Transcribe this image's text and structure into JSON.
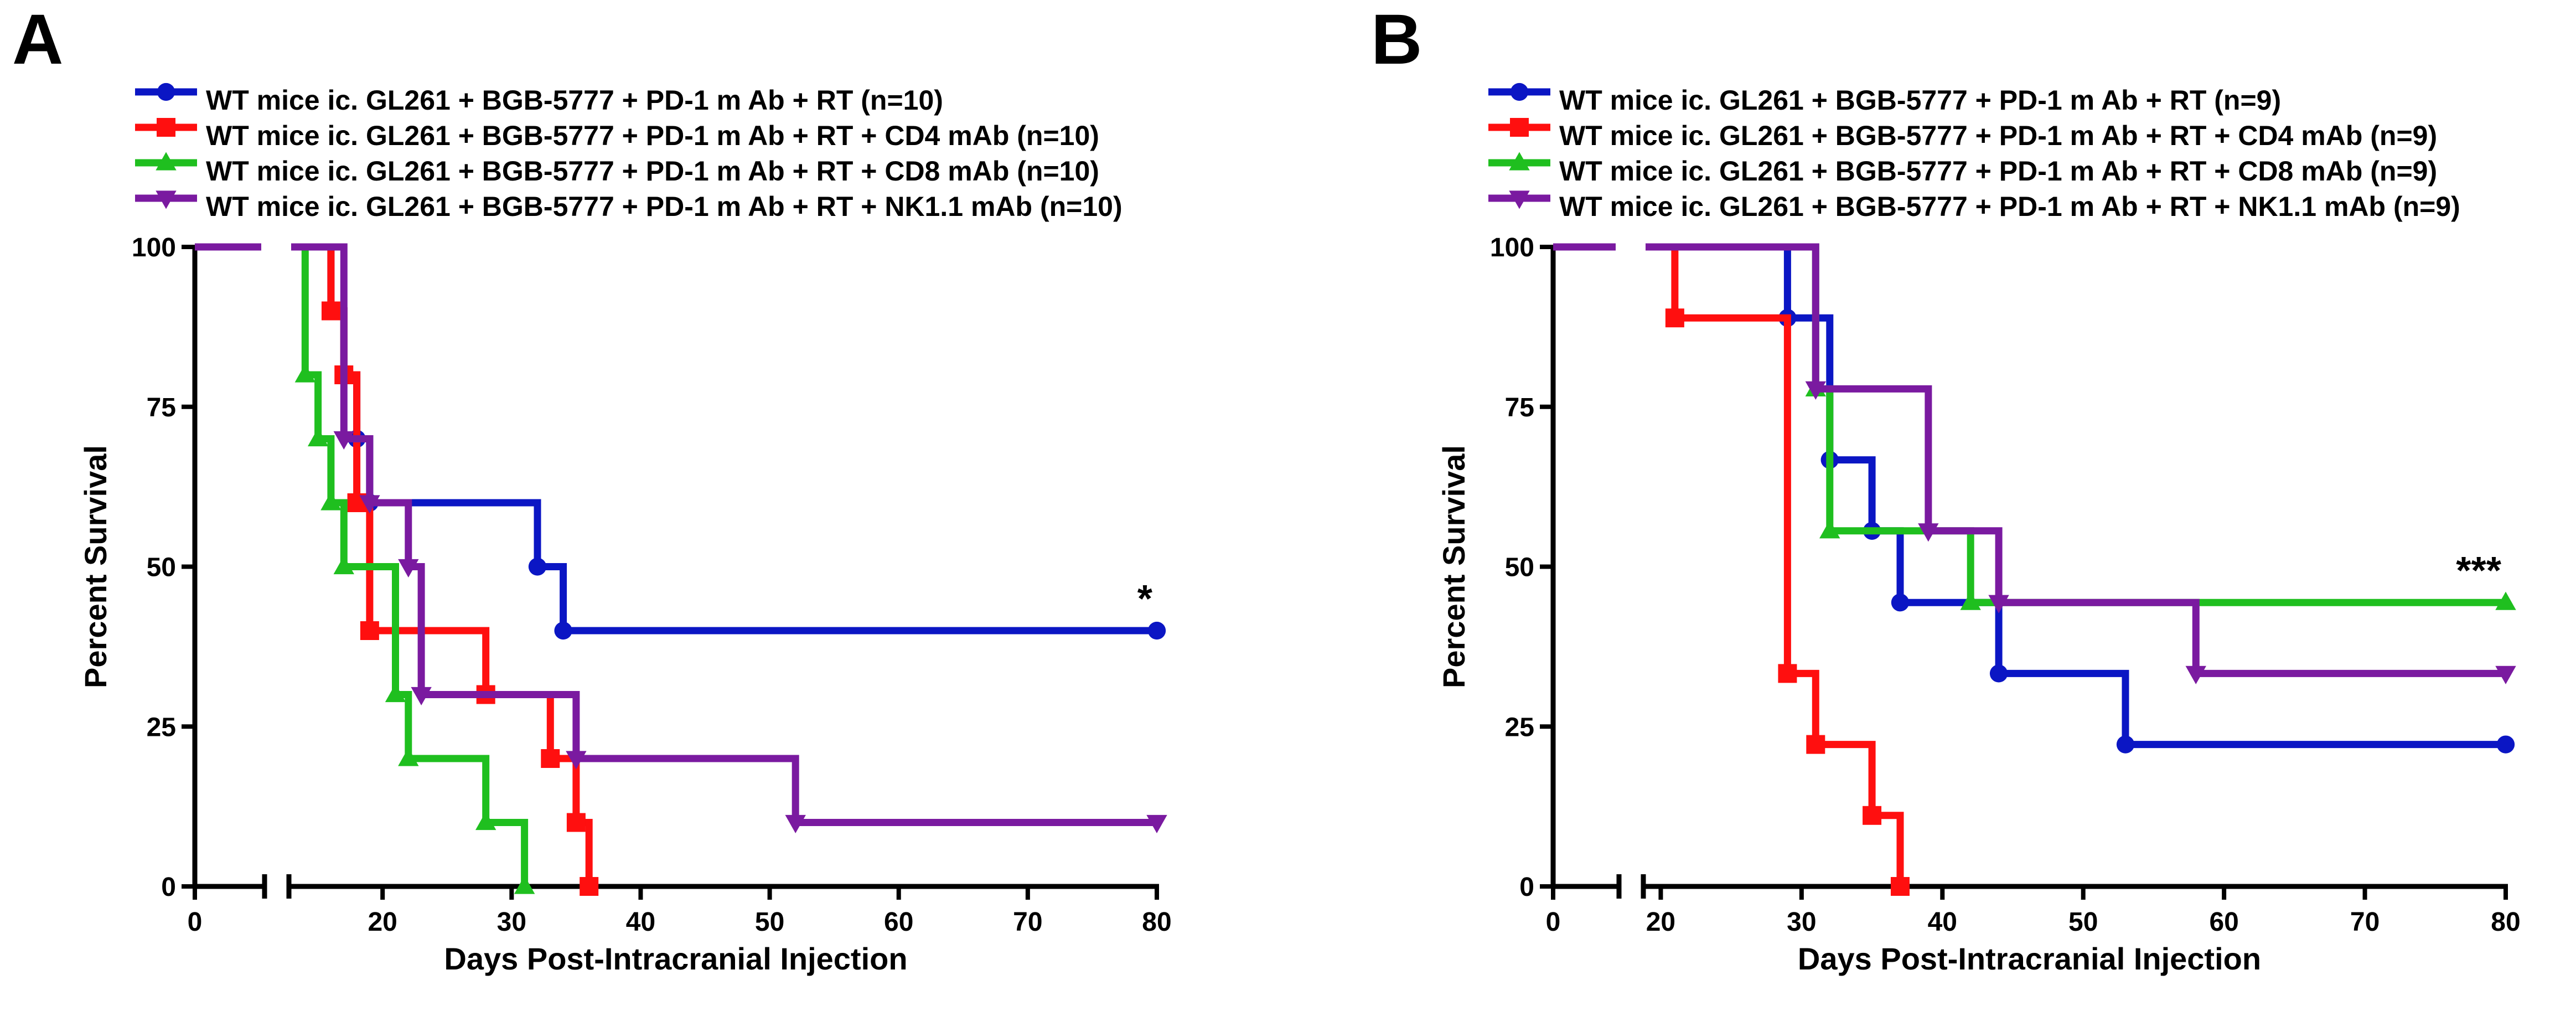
{
  "chart_data": [
    {
      "type": "line",
      "panel_label": "A",
      "xlabel": "Days Post-Intracranial Injection",
      "ylabel": "Percent Survival",
      "xlim": [
        0,
        80
      ],
      "ylim": [
        0,
        100
      ],
      "x_axis_break": true,
      "xticks": [
        0,
        20,
        30,
        40,
        50,
        60,
        70,
        80
      ],
      "yticks": [
        0,
        25,
        50,
        75,
        100
      ],
      "grid": false,
      "legend_position": "top",
      "significance": "*",
      "series": [
        {
          "name": "WT mice ic. GL261 + BGB-5777 + PD-1 m Ab + RT (n=10)",
          "color": "#0b16c4",
          "marker": "circle",
          "x": [
            0,
            16,
            17,
            18,
            19,
            32,
            34,
            80
          ],
          "y": [
            100,
            90,
            80,
            70,
            60,
            50,
            40,
            40
          ]
        },
        {
          "name": "WT mice ic. GL261 + BGB-5777 + PD-1 m Ab + RT + CD4 mAb (n=10)",
          "color": "#ff0f0f",
          "marker": "square",
          "x": [
            0,
            16,
            17,
            18,
            19,
            28,
            33,
            35,
            36
          ],
          "y": [
            100,
            90,
            80,
            60,
            40,
            30,
            20,
            10,
            0
          ]
        },
        {
          "name": "WT mice ic. GL261 + BGB-5777 + PD-1 m Ab + RT + CD8 mAb (n=10)",
          "color": "#1fbf1f",
          "marker": "triangle-up",
          "x": [
            0,
            14,
            15,
            16,
            17,
            21,
            22,
            28,
            31
          ],
          "y": [
            100,
            80,
            70,
            60,
            50,
            30,
            20,
            10,
            0
          ]
        },
        {
          "name": "WT mice ic. GL261 + BGB-5777 + PD-1 m Ab + RT + NK1.1 mAb (n=10)",
          "color": "#7a1aa0",
          "marker": "triangle-down",
          "x": [
            0,
            17,
            19,
            22,
            23,
            35,
            52,
            80
          ],
          "y": [
            100,
            70,
            60,
            50,
            30,
            20,
            10,
            10
          ]
        }
      ]
    },
    {
      "type": "line",
      "panel_label": "B",
      "xlabel": "Days Post-Intracranial Injection",
      "ylabel": "Percent Survival",
      "xlim": [
        0,
        80
      ],
      "ylim": [
        0,
        100
      ],
      "x_axis_break": true,
      "xticks": [
        0,
        20,
        30,
        40,
        50,
        60,
        70,
        80
      ],
      "yticks": [
        0,
        25,
        50,
        75,
        100
      ],
      "grid": false,
      "legend_position": "top",
      "significance": "***",
      "series": [
        {
          "name": "WT mice ic. GL261 + BGB-5777 + PD-1 m Ab + RT (n=9)",
          "color": "#0b16c4",
          "marker": "circle",
          "x": [
            0,
            29,
            32,
            35,
            37,
            44,
            53,
            80
          ],
          "y": [
            100,
            88.9,
            66.7,
            55.6,
            44.4,
            33.3,
            22.2,
            22.2
          ]
        },
        {
          "name": "WT mice ic. GL261 + BGB-5777 + PD-1 m Ab + RT + CD4 mAb (n=9)",
          "color": "#ff0f0f",
          "marker": "square",
          "x": [
            0,
            21,
            29,
            31,
            35,
            37
          ],
          "y": [
            100,
            88.9,
            33.3,
            22.2,
            11.1,
            0
          ]
        },
        {
          "name": "WT mice ic. GL261 + BGB-5777 + PD-1 m Ab + RT + CD8 mAb (n=9)",
          "color": "#1fbf1f",
          "marker": "triangle-up",
          "x": [
            0,
            31,
            32,
            42,
            80
          ],
          "y": [
            100,
            77.8,
            55.6,
            44.4,
            44.4
          ]
        },
        {
          "name": "WT mice ic. GL261 + BGB-5777 + PD-1 m Ab + RT + NK1.1 mAb (n=9)",
          "color": "#7a1aa0",
          "marker": "triangle-down",
          "x": [
            0,
            31,
            39,
            44,
            58,
            80
          ],
          "y": [
            100,
            77.8,
            55.6,
            44.4,
            33.3,
            33.3
          ]
        }
      ]
    }
  ]
}
